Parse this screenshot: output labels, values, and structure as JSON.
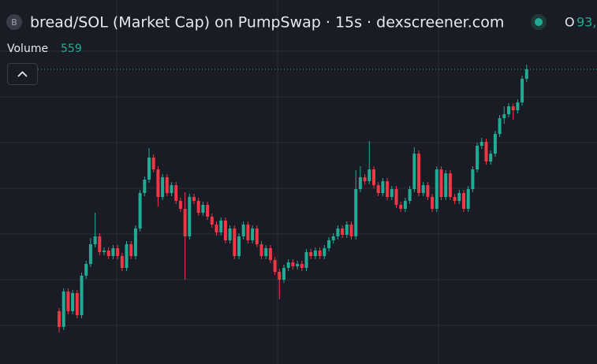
{
  "chart_data": {
    "type": "candlestick",
    "badge": "B",
    "title": "bread/SOL (Market Cap) on PumpSwap · 15s · dexscreener.com",
    "ohlc_label": "O",
    "ohlc_value": "93,",
    "volume_label": "Volume",
    "volume_value": 559,
    "up_color": "#22ab94",
    "down_color": "#f23645",
    "ylim": [
      0,
      400
    ],
    "open": [
      67,
      47,
      92,
      67,
      90,
      62,
      112,
      127,
      152,
      162,
      142,
      144,
      137,
      147,
      137,
      122,
      152,
      137,
      172,
      217,
      234,
      262,
      247,
      212,
      237,
      217,
      227,
      207,
      197,
      162,
      212,
      207,
      192,
      202,
      187,
      177,
      167,
      182,
      157,
      172,
      137,
      162,
      177,
      157,
      172,
      152,
      137,
      147,
      132,
      117,
      107,
      122,
      129,
      124,
      127,
      122,
      142,
      137,
      144,
      137,
      147,
      157,
      162,
      172,
      164,
      177,
      162,
      222,
      237,
      232,
      247,
      227,
      217,
      232,
      212,
      222,
      202,
      197,
      207,
      222,
      267,
      217,
      227,
      212,
      197,
      247,
      212,
      242,
      212,
      207,
      217,
      197,
      222,
      247,
      277,
      282,
      257,
      267,
      292,
      312,
      317,
      327,
      322,
      332,
      362
    ],
    "high": [
      71,
      96,
      96,
      94,
      94,
      116,
      131,
      160,
      192,
      166,
      148,
      148,
      151,
      151,
      141,
      156,
      156,
      176,
      221,
      238,
      274,
      266,
      251,
      241,
      241,
      231,
      231,
      211,
      218,
      216,
      216,
      211,
      206,
      206,
      191,
      181,
      186,
      186,
      176,
      176,
      166,
      181,
      181,
      176,
      176,
      156,
      151,
      151,
      136,
      121,
      126,
      133,
      133,
      131,
      131,
      146,
      146,
      148,
      148,
      151,
      161,
      166,
      176,
      176,
      181,
      181,
      246,
      251,
      241,
      283,
      251,
      231,
      236,
      236,
      226,
      226,
      206,
      211,
      226,
      275,
      271,
      231,
      231,
      216,
      251,
      251,
      246,
      246,
      216,
      221,
      221,
      226,
      251,
      281,
      287,
      286,
      271,
      296,
      316,
      327,
      331,
      331,
      336,
      366,
      380
    ],
    "low": [
      40,
      43,
      63,
      63,
      58,
      58,
      108,
      123,
      148,
      138,
      138,
      133,
      133,
      133,
      118,
      118,
      133,
      133,
      168,
      213,
      230,
      243,
      200,
      208,
      213,
      213,
      203,
      193,
      107,
      158,
      203,
      188,
      188,
      183,
      173,
      163,
      163,
      153,
      153,
      133,
      133,
      158,
      153,
      153,
      148,
      133,
      133,
      128,
      113,
      82,
      103,
      118,
      120,
      120,
      118,
      118,
      133,
      133,
      133,
      133,
      143,
      153,
      158,
      160,
      160,
      158,
      158,
      218,
      228,
      228,
      223,
      213,
      213,
      208,
      208,
      198,
      193,
      193,
      203,
      218,
      213,
      213,
      208,
      193,
      193,
      208,
      208,
      208,
      203,
      203,
      193,
      193,
      218,
      243,
      273,
      253,
      253,
      263,
      288,
      305,
      313,
      310,
      318,
      328,
      358
    ],
    "close": [
      47,
      92,
      67,
      90,
      62,
      112,
      127,
      152,
      162,
      142,
      144,
      137,
      147,
      137,
      122,
      152,
      137,
      172,
      217,
      234,
      262,
      247,
      212,
      237,
      217,
      227,
      207,
      197,
      162,
      212,
      207,
      192,
      202,
      187,
      177,
      167,
      182,
      157,
      172,
      137,
      162,
      177,
      157,
      172,
      152,
      137,
      147,
      132,
      117,
      107,
      122,
      129,
      124,
      127,
      122,
      142,
      137,
      144,
      137,
      147,
      157,
      162,
      172,
      164,
      177,
      162,
      222,
      237,
      232,
      247,
      227,
      217,
      232,
      212,
      222,
      202,
      197,
      207,
      222,
      267,
      217,
      227,
      212,
      197,
      247,
      212,
      242,
      212,
      207,
      217,
      197,
      222,
      247,
      277,
      282,
      257,
      267,
      292,
      312,
      317,
      327,
      322,
      332,
      362,
      374
    ]
  }
}
